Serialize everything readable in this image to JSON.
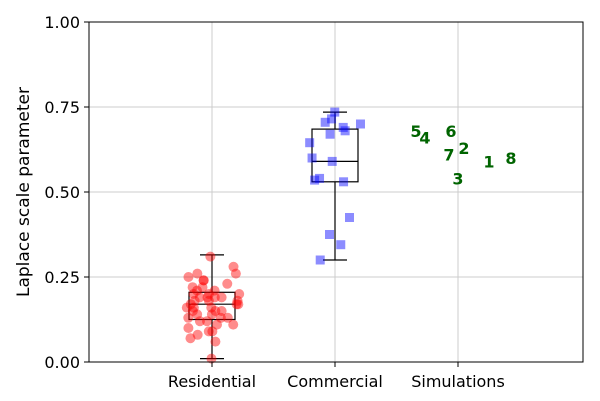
{
  "chart_data": {
    "type": "box",
    "ylabel": "Laplace scale parameter",
    "ylim": [
      0,
      1
    ],
    "yticks": [
      "0.00",
      "0.25",
      "0.50",
      "0.75",
      "1.00"
    ],
    "ytick_values": [
      0,
      0.25,
      0.5,
      0.75,
      1.0
    ],
    "categories": [
      "Residential",
      "Commercial",
      "Simulations"
    ],
    "grid": true,
    "colors": {
      "residential": "#ff0000",
      "commercial": "#0000ff",
      "simulations": "#006400",
      "box": "#000000",
      "grid": "#cccccc"
    },
    "boxes": [
      {
        "category": "Residential",
        "whisker_low": 0.01,
        "q1": 0.125,
        "median": 0.17,
        "q3": 0.205,
        "whisker_high": 0.315
      },
      {
        "category": "Commercial",
        "whisker_low": 0.3,
        "q1": 0.53,
        "median": 0.59,
        "q3": 0.685,
        "whisker_high": 0.735
      }
    ],
    "residential_points": [
      0.01,
      0.06,
      0.07,
      0.08,
      0.09,
      0.09,
      0.1,
      0.11,
      0.11,
      0.12,
      0.12,
      0.13,
      0.13,
      0.13,
      0.14,
      0.14,
      0.15,
      0.15,
      0.15,
      0.16,
      0.16,
      0.16,
      0.17,
      0.17,
      0.17,
      0.18,
      0.18,
      0.18,
      0.19,
      0.19,
      0.19,
      0.19,
      0.2,
      0.2,
      0.2,
      0.21,
      0.21,
      0.22,
      0.22,
      0.23,
      0.24,
      0.24,
      0.25,
      0.26,
      0.26,
      0.28,
      0.31
    ],
    "commercial_points": [
      0.3,
      0.345,
      0.375,
      0.425,
      0.53,
      0.535,
      0.54,
      0.59,
      0.6,
      0.645,
      0.67,
      0.68,
      0.69,
      0.7,
      0.705,
      0.715,
      0.735
    ],
    "simulations": [
      {
        "label": "1",
        "value": 0.59
      },
      {
        "label": "2",
        "value": 0.63
      },
      {
        "label": "3",
        "value": 0.54
      },
      {
        "label": "4",
        "value": 0.66
      },
      {
        "label": "5",
        "value": 0.68
      },
      {
        "label": "6",
        "value": 0.68
      },
      {
        "label": "7",
        "value": 0.61
      },
      {
        "label": "8",
        "value": 0.6
      }
    ]
  }
}
